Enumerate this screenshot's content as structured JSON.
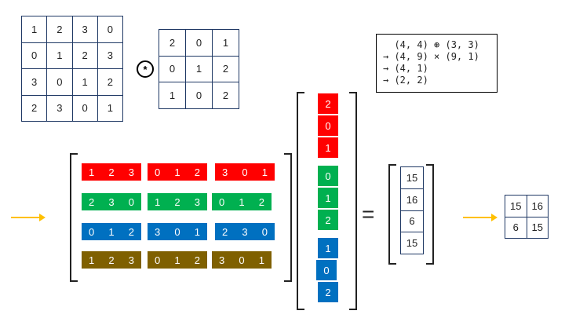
{
  "input_matrix": [
    [
      "1",
      "2",
      "3",
      "0"
    ],
    [
      "0",
      "1",
      "2",
      "3"
    ],
    [
      "3",
      "0",
      "1",
      "2"
    ],
    [
      "2",
      "3",
      "0",
      "1"
    ]
  ],
  "kernel_matrix": [
    [
      "2",
      "0",
      "1"
    ],
    [
      "0",
      "1",
      "2"
    ],
    [
      "1",
      "0",
      "2"
    ]
  ],
  "conv_symbol": "*",
  "shape_note": {
    "lines": [
      "  (4, 4) ⊛ (3, 3)",
      "→ (4, 9) × (9, 1)",
      "→ (4, 1)",
      "→ (2, 2)"
    ]
  },
  "im2col_rows": [
    [
      [
        "1",
        "2",
        "3"
      ],
      [
        "0",
        "1",
        "2"
      ],
      [
        "3",
        "0",
        "1"
      ]
    ],
    [
      [
        "2",
        "3",
        "0"
      ],
      [
        "1",
        "2",
        "3"
      ],
      [
        "0",
        "1",
        "2"
      ]
    ],
    [
      [
        "0",
        "1",
        "2"
      ],
      [
        "3",
        "0",
        "1"
      ],
      [
        "2",
        "3",
        "0"
      ]
    ],
    [
      [
        "1",
        "2",
        "3"
      ],
      [
        "0",
        "1",
        "2"
      ],
      [
        "3",
        "0",
        "1"
      ]
    ]
  ],
  "kernel_vector": [
    [
      "2",
      "0",
      "1"
    ],
    [
      "0",
      "1",
      "2"
    ],
    [
      "1",
      "0",
      "2"
    ]
  ],
  "equals": "=",
  "result_vector": [
    "15",
    "16",
    "6",
    "15"
  ],
  "output_matrix": [
    [
      "15",
      "16"
    ],
    [
      "6",
      "15"
    ]
  ],
  "colors": {
    "row1": "#ff0000",
    "row2": "#00b050",
    "row3": "#0070c0",
    "row4": "#7f6000",
    "grid_border": "#1f3864",
    "arrow": "#ffc000"
  }
}
